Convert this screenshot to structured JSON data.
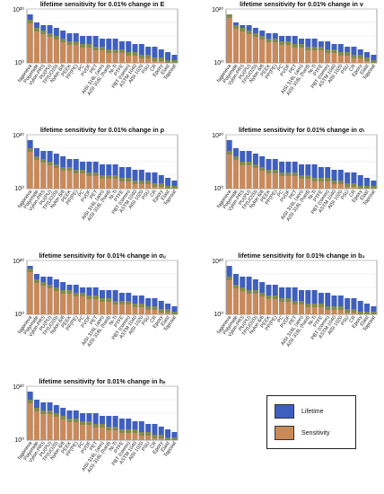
{
  "categories": [
    "fagoneva",
    "Polyimide",
    "Vylon-PRS",
    "PU(PU)",
    "TP(UO20)",
    "Nylon 6/6",
    "PEEK",
    "PP(PE)",
    "PC",
    "PVDF",
    "PET",
    "AISI 316L (ann)",
    "AISI 316L (hard)",
    "Ni-Ti",
    "PTFE",
    "PBT (comm)",
    "ASTM 1040",
    "AlSI 1020",
    "PSU",
    "CR",
    "Epoxy",
    "Elast",
    "Topcoat"
  ],
  "legend": [
    {
      "label": "Lifetime",
      "color": "#3f5fbf"
    },
    {
      "label": "Sensitivity",
      "color": "#c98a5a"
    }
  ],
  "chart_data": [
    {
      "type": "bar",
      "title": "lifetime sensitivity for 0.01% change in E",
      "param": "E",
      "y_tick_labels": [
        "10⁰",
        "10²⁰"
      ],
      "yscale": "log",
      "ylim": [
        1,
        1e+20
      ],
      "series": [
        {
          "name": "Lifetime",
          "log10_values": [
            18,
            15,
            14,
            14,
            13,
            12,
            11,
            11,
            10,
            10,
            10,
            9,
            9,
            9,
            8,
            8,
            7,
            7,
            6,
            6,
            5,
            4,
            3
          ]
        },
        {
          "name": "Sensitivity",
          "log10_values": [
            16,
            13,
            12,
            11,
            10,
            9,
            8,
            8,
            7,
            7,
            6,
            6,
            5,
            5,
            5,
            4,
            4,
            3,
            3,
            2,
            2,
            1,
            1
          ]
        }
      ]
    },
    {
      "type": "bar",
      "title": "lifetime sensitivity for 0.01% change in ν",
      "param": "nu",
      "y_tick_labels": [
        "10⁰",
        "10²⁰"
      ],
      "yscale": "log",
      "ylim": [
        1,
        1e+20
      ],
      "series": [
        {
          "name": "Lifetime",
          "log10_values": [
            18,
            15,
            14,
            14,
            13,
            12,
            11,
            11,
            10,
            10,
            10,
            9,
            9,
            9,
            8,
            8,
            7,
            7,
            6,
            6,
            5,
            4,
            3
          ]
        },
        {
          "name": "Sensitivity",
          "log10_values": [
            18,
            14,
            13,
            12,
            11,
            10,
            9,
            9,
            8,
            8,
            7,
            7,
            6,
            6,
            6,
            5,
            5,
            4,
            4,
            3,
            3,
            2,
            1
          ]
        }
      ]
    },
    {
      "type": "bar",
      "title": "lifetime sensitivity for 0.01% change in ρ",
      "param": "rho",
      "y_tick_labels": [
        "10⁰",
        "10²⁰"
      ],
      "yscale": "log",
      "ylim": [
        1,
        1e+20
      ],
      "series": [
        {
          "name": "Lifetime",
          "log10_values": [
            18,
            15,
            14,
            14,
            13,
            12,
            11,
            11,
            10,
            10,
            10,
            9,
            9,
            9,
            8,
            8,
            7,
            7,
            6,
            6,
            5,
            4,
            3
          ]
        },
        {
          "name": "Sensitivity",
          "log10_values": [
            15,
            12,
            11,
            10,
            9,
            8,
            8,
            7,
            7,
            6,
            6,
            5,
            5,
            5,
            4,
            4,
            3,
            3,
            3,
            2,
            2,
            1,
            1
          ]
        }
      ]
    },
    {
      "type": "bar",
      "title": "lifetime sensitivity for 0.01% change in σₗ",
      "param": "sigma_l",
      "y_tick_labels": [
        "10⁰",
        "10²⁰"
      ],
      "yscale": "log",
      "ylim": [
        1,
        1e+20
      ],
      "series": [
        {
          "name": "Lifetime",
          "log10_values": [
            18,
            15,
            14,
            14,
            13,
            12,
            11,
            11,
            10,
            10,
            10,
            9,
            9,
            9,
            8,
            8,
            7,
            7,
            6,
            6,
            5,
            4,
            3
          ]
        },
        {
          "name": "Sensitivity",
          "log10_values": [
            14,
            12,
            10,
            10,
            9,
            8,
            7,
            7,
            6,
            6,
            6,
            5,
            5,
            4,
            4,
            4,
            3,
            3,
            2,
            2,
            1,
            1,
            1
          ]
        }
      ]
    },
    {
      "type": "bar",
      "title": "lifetime sensitivity for 0.01% change in σᵤ",
      "param": "sigma_u",
      "y_tick_labels": [
        "10⁰",
        "10²⁰"
      ],
      "yscale": "log",
      "ylim": [
        1,
        1e+20
      ],
      "series": [
        {
          "name": "Lifetime",
          "log10_values": [
            18,
            15,
            14,
            14,
            13,
            12,
            11,
            11,
            10,
            10,
            10,
            9,
            9,
            9,
            8,
            8,
            7,
            7,
            6,
            6,
            5,
            4,
            3
          ]
        },
        {
          "name": "Sensitivity",
          "log10_values": [
            17,
            13,
            12,
            11,
            10,
            9,
            9,
            8,
            8,
            7,
            7,
            6,
            6,
            5,
            5,
            5,
            4,
            4,
            3,
            3,
            2,
            2,
            1
          ]
        }
      ]
    },
    {
      "type": "bar",
      "title": "lifetime sensitivity for 0.01% change in b₂",
      "param": "b2",
      "y_tick_labels": [
        "10⁰",
        "10²⁰"
      ],
      "yscale": "log",
      "ylim": [
        1,
        1e+20
      ],
      "series": [
        {
          "name": "Lifetime",
          "log10_values": [
            18,
            15,
            14,
            14,
            13,
            12,
            11,
            11,
            10,
            10,
            10,
            9,
            9,
            9,
            8,
            8,
            7,
            7,
            6,
            6,
            5,
            4,
            3
          ]
        },
        {
          "name": "Sensitivity",
          "log10_values": [
            14,
            11,
            10,
            9,
            9,
            8,
            7,
            7,
            6,
            6,
            5,
            5,
            4,
            4,
            4,
            3,
            3,
            3,
            2,
            2,
            1,
            1,
            1
          ]
        }
      ]
    },
    {
      "type": "bar",
      "title": "lifetime sensitivity for 0.01% change in hₑ",
      "param": "hc",
      "y_tick_labels": [
        "10⁰",
        "10²⁰"
      ],
      "yscale": "log",
      "ylim": [
        1,
        1e+20
      ],
      "series": [
        {
          "name": "Lifetime",
          "log10_values": [
            18,
            15,
            14,
            14,
            13,
            12,
            11,
            11,
            10,
            10,
            10,
            9,
            9,
            9,
            8,
            8,
            7,
            7,
            6,
            6,
            5,
            4,
            3
          ]
        },
        {
          "name": "Sensitivity",
          "log10_values": [
            15,
            12,
            11,
            11,
            10,
            9,
            8,
            8,
            7,
            7,
            6,
            6,
            5,
            5,
            4,
            4,
            4,
            3,
            3,
            2,
            2,
            1,
            1
          ]
        }
      ]
    }
  ]
}
